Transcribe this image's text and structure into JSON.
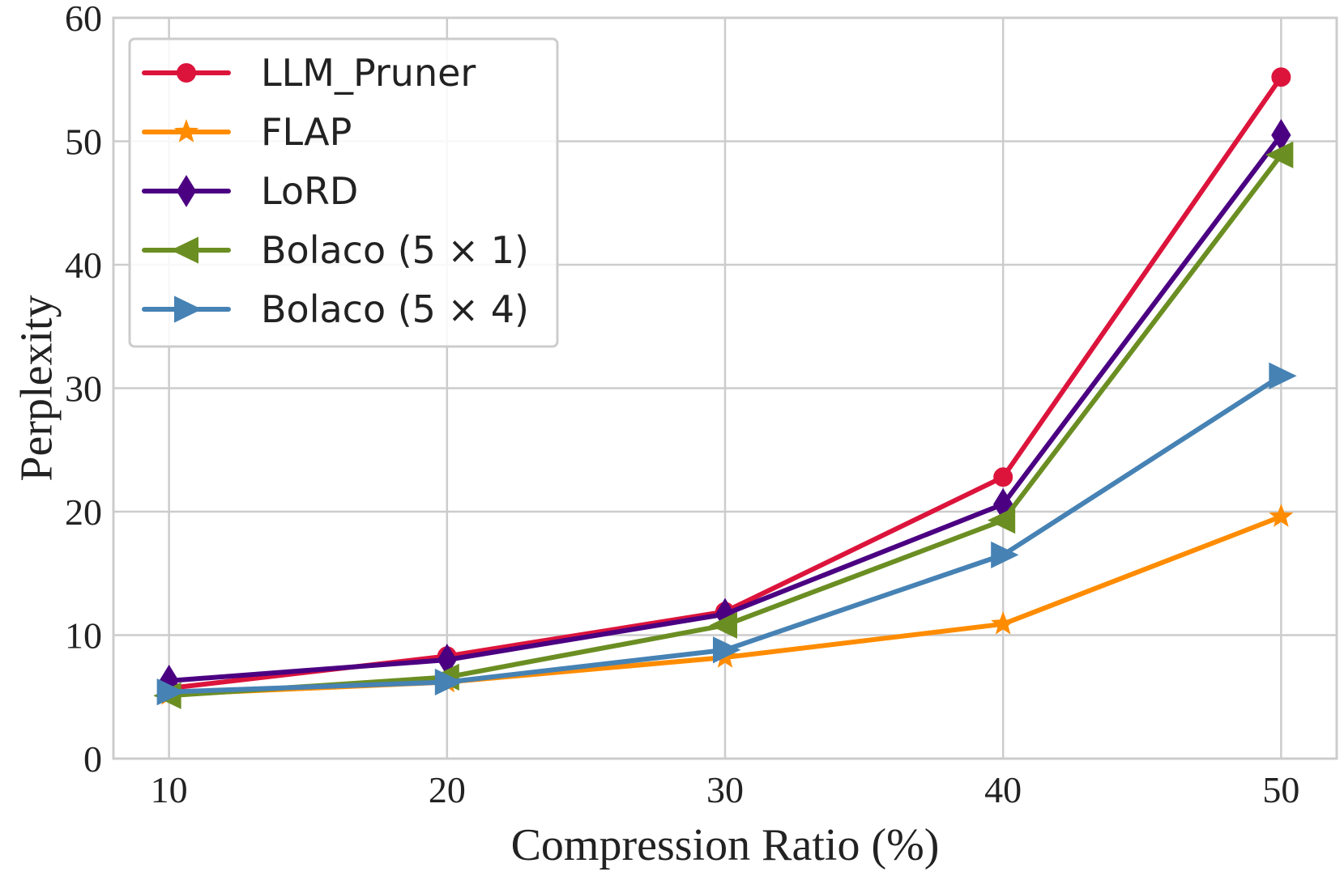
{
  "chart_data": {
    "type": "line",
    "title": "",
    "xlabel": "Compression Ratio (%)",
    "ylabel": "Perplexity",
    "x": [
      10,
      20,
      30,
      40,
      50
    ],
    "xlim": [
      8,
      52
    ],
    "ylim": [
      0,
      60
    ],
    "xticks": [
      "10",
      "20",
      "30",
      "40",
      "50"
    ],
    "yticks": [
      "0",
      "10",
      "20",
      "30",
      "40",
      "50",
      "60"
    ],
    "grid": true,
    "legend_position": "top-left",
    "series": [
      {
        "name": "LLM_Pruner",
        "values": [
          5.7,
          8.3,
          11.9,
          22.8,
          55.2
        ],
        "color": "#dc143c",
        "marker": "circle"
      },
      {
        "name": "FLAP",
        "values": [
          5.2,
          6.2,
          8.2,
          10.9,
          19.6
        ],
        "color": "#ff8c00",
        "marker": "star"
      },
      {
        "name": "LoRD",
        "values": [
          6.3,
          8.0,
          11.7,
          20.6,
          50.5
        ],
        "color": "#4b0082",
        "marker": "diamond"
      },
      {
        "name": "Bolaco (5 × 1)",
        "values": [
          5.1,
          6.6,
          10.8,
          19.3,
          48.9
        ],
        "color": "#6b8e23",
        "marker": "triangle-left"
      },
      {
        "name": "Bolaco (5 × 4)",
        "values": [
          5.4,
          6.2,
          8.8,
          16.5,
          31.0
        ],
        "color": "#4682b4",
        "marker": "triangle-right"
      }
    ]
  }
}
